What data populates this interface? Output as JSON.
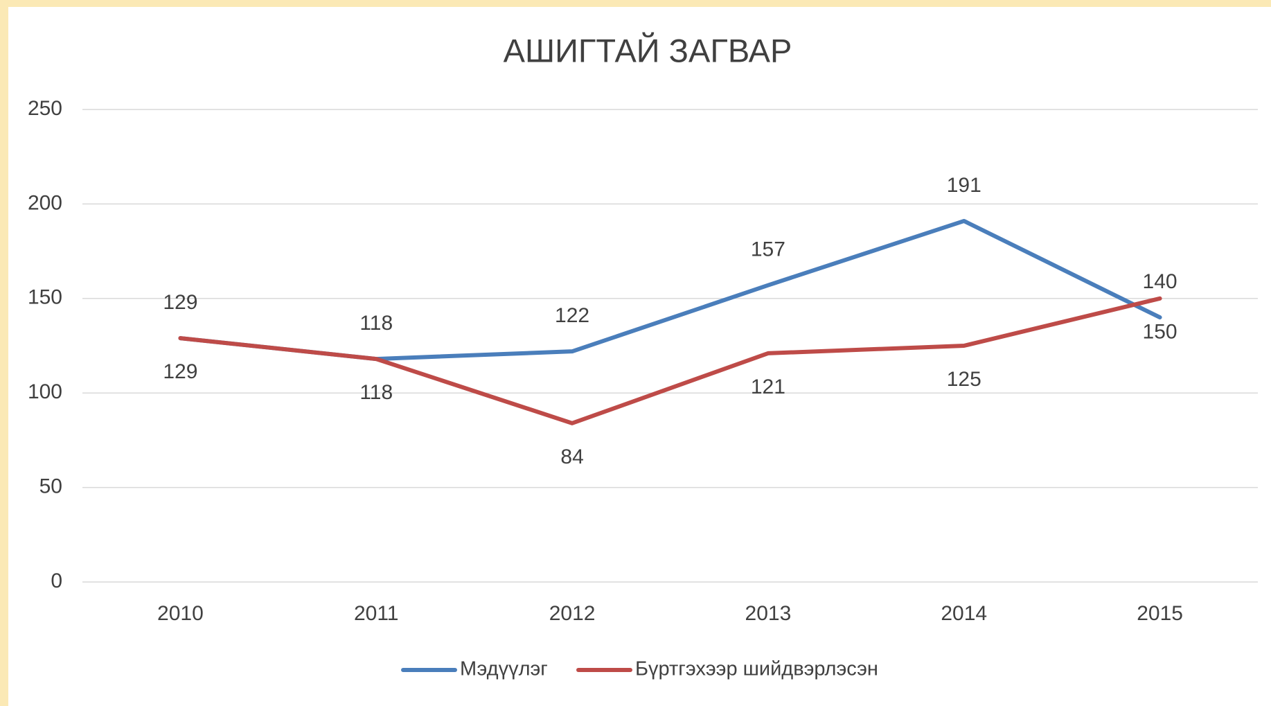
{
  "chart_data": {
    "type": "line",
    "title": "АШИГТАЙ ЗАГВАР",
    "categories": [
      "2010",
      "2011",
      "2012",
      "2013",
      "2014",
      "2015"
    ],
    "series": [
      {
        "name": "Мэдүүлэг",
        "color": "#4a7ebb",
        "values": [
          129,
          118,
          122,
          157,
          191,
          140
        ]
      },
      {
        "name": "Бүртгэхээр шийдвэрлэсэн",
        "color": "#be4b48",
        "values": [
          129,
          118,
          84,
          121,
          125,
          150
        ]
      }
    ],
    "ylim": [
      0,
      250
    ],
    "yticks": [
      0,
      50,
      100,
      150,
      200,
      250
    ],
    "grid": true,
    "legend": "bottom"
  }
}
